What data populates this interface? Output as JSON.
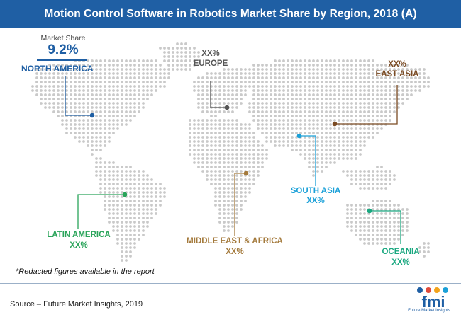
{
  "title": "Motion Control Software in Robotics Market Share by Region, 2018 (A)",
  "regions": {
    "north_america": {
      "share_label": "Market Share",
      "value": "9.2%",
      "name": "NORTH AMERICA",
      "color": "#1f5fa4"
    },
    "europe": {
      "value": "XX%",
      "name": "EUROPE",
      "color": "#555555"
    },
    "east_asia": {
      "value": "XX%",
      "name": "EAST ASIA",
      "color": "#7a4a22"
    },
    "south_asia": {
      "name": "SOUTH ASIA",
      "value": "XX%",
      "color": "#1aa0d8"
    },
    "latin_america": {
      "name": "LATIN AMERICA",
      "value": "XX%",
      "color": "#2aa45a"
    },
    "mea": {
      "name": "MIDDLE EAST & AFRICA",
      "value": "XX%",
      "color": "#a47a3c"
    },
    "oceania": {
      "name": "OCEANIA",
      "value": "XX%",
      "color": "#1aa880"
    }
  },
  "note": "*Redacted figures available in the report",
  "source": "Source – Future Market Insights, 2019",
  "logo": {
    "text": "fmi",
    "tagline": "Future Market Insights"
  }
}
